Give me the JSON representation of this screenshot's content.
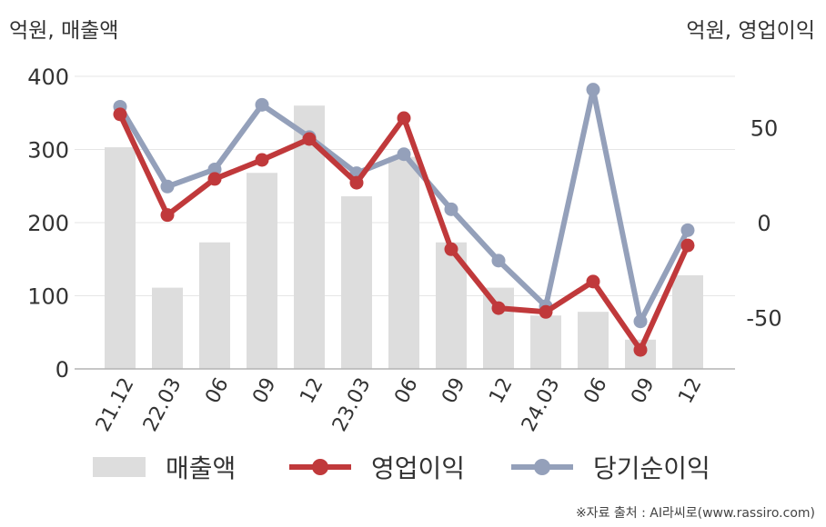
{
  "left_axis_unit": "억원, 매출액",
  "right_axis_unit": "억원, 영업이익",
  "source_note": "※자료 출처 : AI라씨로(www.rassiro.com)",
  "colors": {
    "revenue": "#dddddd",
    "operating_profit": "#c0393b",
    "net_income": "#94a0ba",
    "axis_text": "#333333",
    "grid": "#e6e6e6"
  },
  "chart_data": {
    "type": "bar",
    "categories": [
      "21.12",
      "22.03",
      "06",
      "09",
      "12",
      "23.03",
      "06",
      "09",
      "12",
      "24.03",
      "06",
      "09",
      "12"
    ],
    "series": [
      {
        "name": "매출액",
        "type": "bar",
        "axis": "left",
        "values": [
          303,
          111,
          173,
          268,
          360,
          236,
          290,
          173,
          111,
          73,
          78,
          40,
          128
        ]
      },
      {
        "name": "영업이익",
        "type": "line",
        "axis": "right",
        "values": [
          57,
          4,
          23,
          33,
          44,
          21,
          55,
          -14,
          -45,
          -47,
          -31,
          -67,
          -12
        ]
      },
      {
        "name": "당기순이익",
        "type": "line",
        "axis": "right",
        "values": [
          61,
          19,
          28,
          62,
          45,
          26,
          36,
          7,
          -20,
          -44,
          70,
          -52,
          -4
        ]
      }
    ],
    "left_axis": {
      "ticks": [
        "0",
        "100",
        "200",
        "300",
        "400"
      ],
      "ylim": [
        0,
        400
      ]
    },
    "right_axis": {
      "ticks": [
        "-50",
        "0",
        "50"
      ],
      "ylim": [
        -77,
        77
      ]
    },
    "grid": true,
    "legend_position": "bottom"
  }
}
